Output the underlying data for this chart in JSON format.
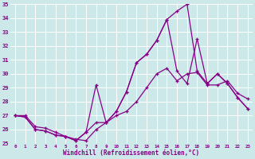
{
  "xlabel": "Windchill (Refroidissement éolien,°C)",
  "background_color": "#cce8e8",
  "grid_color": "#aadddd",
  "line_color": "#880088",
  "xlim": [
    -0.5,
    23.5
  ],
  "ylim": [
    25,
    35
  ],
  "xticks": [
    0,
    1,
    2,
    3,
    4,
    5,
    6,
    7,
    8,
    9,
    10,
    11,
    12,
    13,
    14,
    15,
    16,
    17,
    18,
    19,
    20,
    21,
    22,
    23
  ],
  "yticks": [
    25,
    26,
    27,
    28,
    29,
    30,
    31,
    32,
    33,
    34,
    35
  ],
  "line1_x": [
    0,
    1,
    2,
    3,
    4,
    5,
    6,
    7,
    8,
    9,
    10,
    11,
    12,
    13,
    14,
    15,
    16,
    17,
    18,
    19,
    20,
    21,
    22,
    23
  ],
  "line1_y": [
    27.0,
    26.9,
    26.0,
    25.9,
    25.6,
    25.5,
    25.2,
    25.8,
    26.5,
    26.5,
    27.3,
    28.7,
    30.8,
    31.4,
    32.4,
    33.9,
    30.2,
    29.3,
    32.5,
    29.3,
    30.0,
    29.3,
    28.3,
    27.5
  ],
  "line2_x": [
    0,
    1,
    2,
    3,
    4,
    5,
    6,
    7,
    8,
    9,
    10,
    11,
    12,
    13,
    14,
    15,
    16,
    17,
    18,
    19,
    20,
    21,
    22,
    23
  ],
  "line2_y": [
    27.0,
    26.9,
    26.0,
    25.9,
    25.6,
    25.5,
    25.2,
    25.8,
    29.2,
    26.5,
    27.3,
    28.7,
    30.8,
    31.4,
    32.4,
    33.9,
    34.5,
    35.0,
    30.2,
    29.3,
    30.0,
    29.3,
    28.3,
    27.5
  ],
  "line3_x": [
    0,
    1,
    2,
    3,
    4,
    5,
    6,
    7,
    8,
    9,
    10,
    11,
    12,
    13,
    14,
    15,
    16,
    17,
    18,
    19,
    20,
    21,
    22,
    23
  ],
  "line3_y": [
    27.0,
    27.0,
    26.2,
    26.1,
    25.8,
    25.5,
    25.3,
    25.2,
    26.0,
    26.5,
    27.0,
    27.3,
    28.0,
    29.0,
    30.0,
    30.4,
    29.5,
    30.0,
    30.1,
    29.2,
    29.2,
    29.5,
    28.6,
    28.2
  ]
}
